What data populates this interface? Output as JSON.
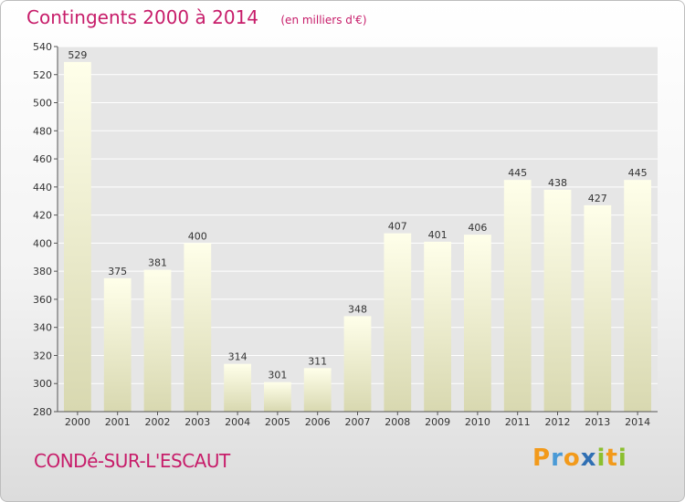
{
  "header": {
    "title": "Contingents 2000 à 2014",
    "subtitle": "(en milliers d'€)"
  },
  "footer": {
    "city": "CONDé-SUR-L'ESCAUT",
    "logo_text": "Proxiti"
  },
  "colors": {
    "title": "#c71d6a",
    "bar_top": "#ffffea",
    "bar_bottom": "#d8d8b0",
    "grid": "#ffffff",
    "axis": "#555555"
  },
  "chart_data": {
    "type": "bar",
    "title": "Contingents 2000 à 2014",
    "subtitle": "(en milliers d'€)",
    "xlabel": "",
    "ylabel": "",
    "categories": [
      "2000",
      "2001",
      "2002",
      "2003",
      "2004",
      "2005",
      "2006",
      "2007",
      "2008",
      "2009",
      "2010",
      "2011",
      "2012",
      "2013",
      "2014"
    ],
    "values": [
      529,
      375,
      381,
      400,
      314,
      301,
      311,
      348,
      407,
      401,
      406,
      445,
      438,
      427,
      445
    ],
    "ylim": [
      280,
      540
    ],
    "yticks": [
      280,
      300,
      320,
      340,
      360,
      380,
      400,
      420,
      440,
      460,
      480,
      500,
      520,
      540
    ],
    "grid": true,
    "data_labels": true
  }
}
